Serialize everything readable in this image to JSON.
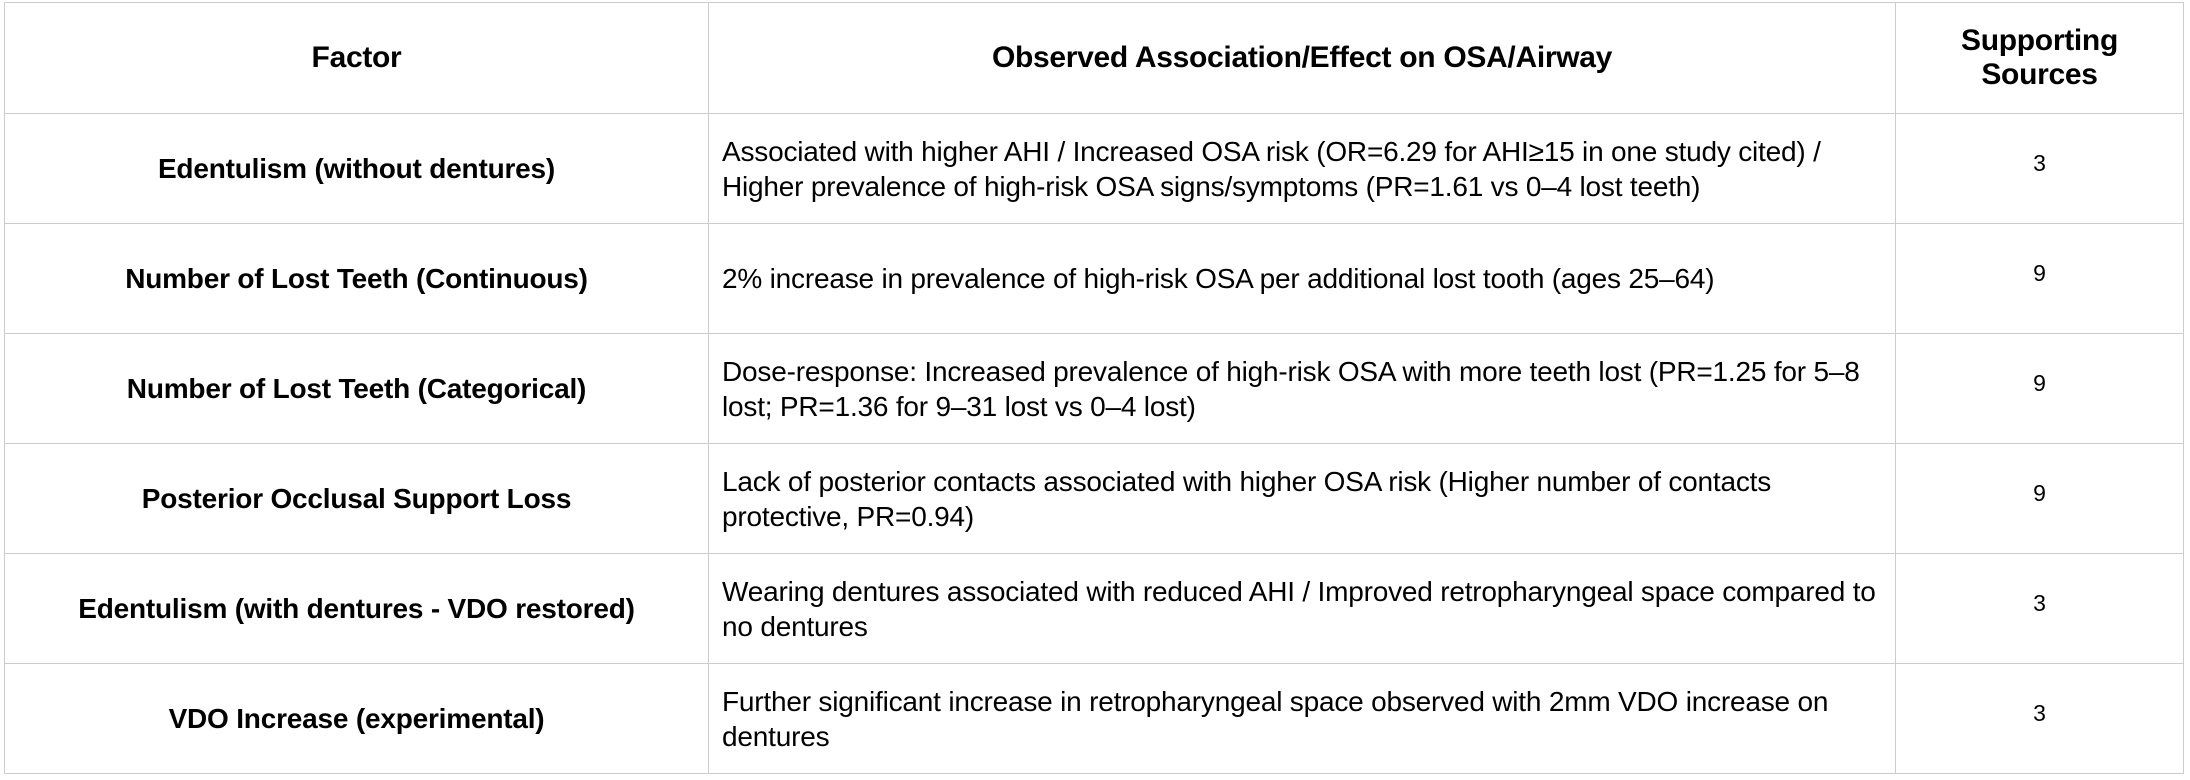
{
  "table": {
    "headers": {
      "factor": "Factor",
      "effect": "Observed Association/Effect on OSA/Airway",
      "sources": "Supporting Sources"
    },
    "rows": [
      {
        "factor": "Edentulism (without dentures)",
        "effect": "Associated with higher AHI / Increased OSA risk (OR=6.29 for AHI≥15 in one study cited) / Higher prevalence of high-risk OSA signs/symptoms (PR=1.61 vs 0–4 lost teeth)",
        "source": "3"
      },
      {
        "factor": "Number of Lost Teeth (Continuous)",
        "effect": "2% increase in prevalence of high-risk OSA per additional lost tooth (ages 25–64)",
        "source": "9"
      },
      {
        "factor": "Number of Lost Teeth (Categorical)",
        "effect": "Dose-response: Increased prevalence of high-risk OSA with more teeth lost (PR=1.25 for 5–8 lost; PR=1.36 for 9–31 lost vs 0–4 lost)",
        "source": "9"
      },
      {
        "factor": "Posterior Occlusal Support Loss",
        "effect": "Lack of posterior contacts associated with higher OSA risk (Higher number of contacts protective, PR=0.94)",
        "source": "9"
      },
      {
        "factor": "Edentulism (with dentures - VDO restored)",
        "effect": "Wearing dentures associated with reduced AHI / Improved retropharyngeal space compared to no dentures",
        "source": "3"
      },
      {
        "factor": "VDO Increase (experimental)",
        "effect": "Further significant increase in retropharyngeal space observed with 2mm VDO increase on dentures",
        "source": "3"
      }
    ]
  },
  "colors": {
    "background": "#ffffff",
    "border": "#cccccc",
    "text": "#000000"
  }
}
